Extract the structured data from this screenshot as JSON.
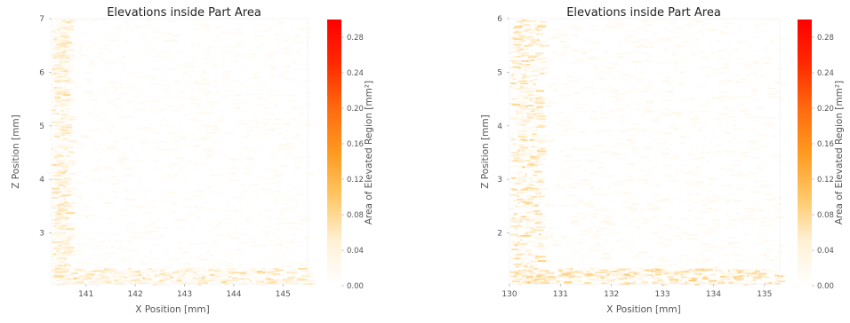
{
  "chart_data": [
    {
      "type": "heatmap",
      "title": "Elevations inside Part Area",
      "xlabel": "X Position [mm]",
      "ylabel": "Z Position [mm]",
      "xlim": [
        140.3,
        145.5
      ],
      "ylim": [
        2.05,
        7.0
      ],
      "xticks": [
        141,
        142,
        143,
        144,
        145
      ],
      "yticks": [
        3,
        4,
        5,
        6,
        7
      ],
      "colorbar": {
        "label": "Area of Elevated Region [mm²]",
        "range": [
          0.0,
          0.3
        ],
        "ticks": [
          "0.00",
          "0.04",
          "0.08",
          "0.12",
          "0.16",
          "0.20",
          "0.24",
          "0.28"
        ],
        "colors": [
          "#ffffff",
          "#fff1d6",
          "#ffc766",
          "#ff9a1f",
          "#ff6a0f",
          "#ff2a00",
          "#ff0000"
        ]
      },
      "density_features": {
        "left_band_x": [
          140.3,
          140.65
        ],
        "bottom_band_z": [
          2.05,
          2.35
        ],
        "background_level": 0.02,
        "band_level": 0.07,
        "max_level": 0.12
      },
      "grid": false
    },
    {
      "type": "heatmap",
      "title": "Elevations inside Part Area",
      "xlabel": "X Position [mm]",
      "ylabel": "Z Position [mm]",
      "xlim": [
        130.0,
        135.3
      ],
      "ylim": [
        1.05,
        6.0
      ],
      "xticks": [
        130,
        131,
        132,
        133,
        134,
        135
      ],
      "yticks": [
        2,
        3,
        4,
        5,
        6
      ],
      "colorbar": {
        "label": "Area of Elevated Region [mm²]",
        "range": [
          0.0,
          0.3
        ],
        "ticks": [
          "0.00",
          "0.04",
          "0.08",
          "0.12",
          "0.16",
          "0.20",
          "0.24",
          "0.28"
        ],
        "colors": [
          "#ffffff",
          "#fff1d6",
          "#ffc766",
          "#ff9a1f",
          "#ff6a0f",
          "#ff2a00",
          "#ff0000"
        ]
      },
      "density_features": {
        "left_band_x": [
          130.0,
          130.6
        ],
        "bottom_band_z": [
          1.05,
          1.35
        ],
        "background_level": 0.025,
        "band_level": 0.08,
        "max_level": 0.13
      },
      "grid": false
    }
  ]
}
